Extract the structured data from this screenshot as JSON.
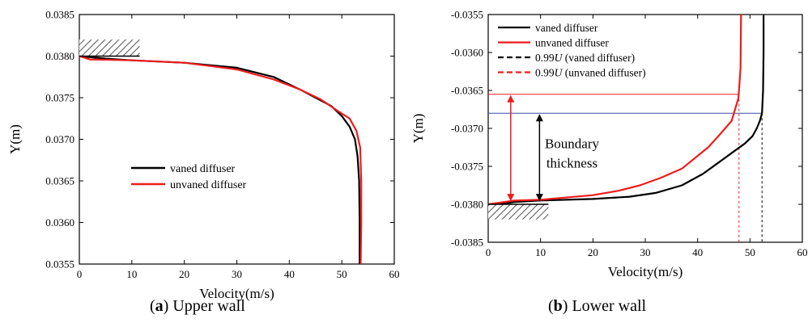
{
  "chart_data": [
    {
      "type": "line",
      "xlabel": "Velocity(m/s)",
      "ylabel": "Y(m)",
      "xlim": [
        0,
        60
      ],
      "ylim": [
        0.0355,
        0.0385
      ],
      "x_ticks": [
        "0",
        "10",
        "20",
        "30",
        "40",
        "50",
        "60"
      ],
      "y_ticks": [
        "0.0355",
        "0.0360",
        "0.0365",
        "0.0370",
        "0.0375",
        "0.0380",
        "0.0385"
      ],
      "legend_position": "center-right",
      "series": [
        {
          "name": "vaned diffuser",
          "color": "#000000",
          "points": [
            [
              0,
              0.038
            ],
            [
              5,
              0.03797
            ],
            [
              10,
              0.03795
            ],
            [
              20,
              0.03792
            ],
            [
              30,
              0.03786
            ],
            [
              37,
              0.03775
            ],
            [
              42,
              0.0376
            ],
            [
              45,
              0.0375
            ],
            [
              48,
              0.0374
            ],
            [
              50,
              0.03728
            ],
            [
              51.5,
              0.03715
            ],
            [
              52.5,
              0.037
            ],
            [
              53,
              0.0368
            ],
            [
              53.3,
              0.0365
            ],
            [
              53.4,
              0.036
            ],
            [
              53.4,
              0.0355
            ]
          ]
        },
        {
          "name": "unvaned diffuser",
          "color": "#ee1c1c",
          "points": [
            [
              0,
              0.038
            ],
            [
              2,
              0.03796
            ],
            [
              10,
              0.03795
            ],
            [
              20,
              0.03792
            ],
            [
              30,
              0.03784
            ],
            [
              37,
              0.03772
            ],
            [
              42,
              0.0376
            ],
            [
              46,
              0.03748
            ],
            [
              49,
              0.03735
            ],
            [
              51.5,
              0.03725
            ],
            [
              52.8,
              0.0371
            ],
            [
              53.5,
              0.0369
            ],
            [
              53.7,
              0.0365
            ],
            [
              53.7,
              0.036
            ],
            [
              53.6,
              0.0355
            ]
          ]
        }
      ],
      "caption_letter": "a",
      "caption_text": "Upper wall"
    },
    {
      "type": "line",
      "xlabel": "Velocity(m/s)",
      "ylabel": "Y(m)",
      "xlim": [
        0,
        60
      ],
      "ylim": [
        -0.0385,
        -0.0355
      ],
      "x_ticks": [
        "0",
        "10",
        "20",
        "30",
        "40",
        "50",
        "60"
      ],
      "y_ticks": [
        "-0.0385",
        "-0.0380",
        "-0.0375",
        "-0.0370",
        "-0.0365",
        "-0.0360",
        "-0.0355"
      ],
      "legend_position": "top-left",
      "series": [
        {
          "name": "vaned diffuser",
          "color": "#000000",
          "points": [
            [
              0,
              -0.03802
            ],
            [
              5,
              -0.03797
            ],
            [
              10,
              -0.03795
            ],
            [
              20,
              -0.03793
            ],
            [
              27,
              -0.0379
            ],
            [
              32,
              -0.03785
            ],
            [
              37,
              -0.03775
            ],
            [
              41,
              -0.0376
            ],
            [
              44,
              -0.03745
            ],
            [
              47,
              -0.0373
            ],
            [
              49,
              -0.0372
            ],
            [
              50.5,
              -0.0371
            ],
            [
              51.3,
              -0.037
            ],
            [
              51.9,
              -0.0369
            ],
            [
              52.3,
              -0.0368
            ],
            [
              52.5,
              -0.0365
            ],
            [
              52.6,
              -0.036
            ],
            [
              52.6,
              -0.0355
            ]
          ]
        },
        {
          "name": "unvaned diffuser",
          "color": "#ee1c1c",
          "points": [
            [
              0,
              -0.038
            ],
            [
              5,
              -0.03795
            ],
            [
              10,
              -0.03794
            ],
            [
              20,
              -0.03788
            ],
            [
              25,
              -0.03782
            ],
            [
              29,
              -0.03775
            ],
            [
              33,
              -0.03765
            ],
            [
              37,
              -0.03753
            ],
            [
              42,
              -0.03725
            ],
            [
              44,
              -0.0371
            ],
            [
              46.5,
              -0.0369
            ],
            [
              47.8,
              -0.0366
            ],
            [
              48.2,
              -0.0362
            ],
            [
              48.3,
              -0.0355
            ]
          ]
        },
        {
          "name": "0.99U (vaned diffuser)",
          "color": "#000000",
          "dashed": true
        },
        {
          "name": "0.99U (unvaned diffuser)",
          "color": "#ee1c1c",
          "dashed": true
        }
      ],
      "ref_lines": {
        "vaned_velocity": 52.3,
        "unvaned_velocity": 47.9,
        "vaned_thickness_y": -0.0368,
        "unvaned_thickness_y": -0.03655,
        "wall_y": -0.038
      },
      "annotation": [
        "Boundary",
        "thickness"
      ],
      "legend_math_symbol": "U",
      "legend_prefix": "0.99",
      "legend_suffix_vaned": " (vaned diffuser)",
      "legend_suffix_unvaned": " (unvaned diffuser)",
      "caption_letter": "b",
      "caption_text": "Lower wall"
    }
  ]
}
